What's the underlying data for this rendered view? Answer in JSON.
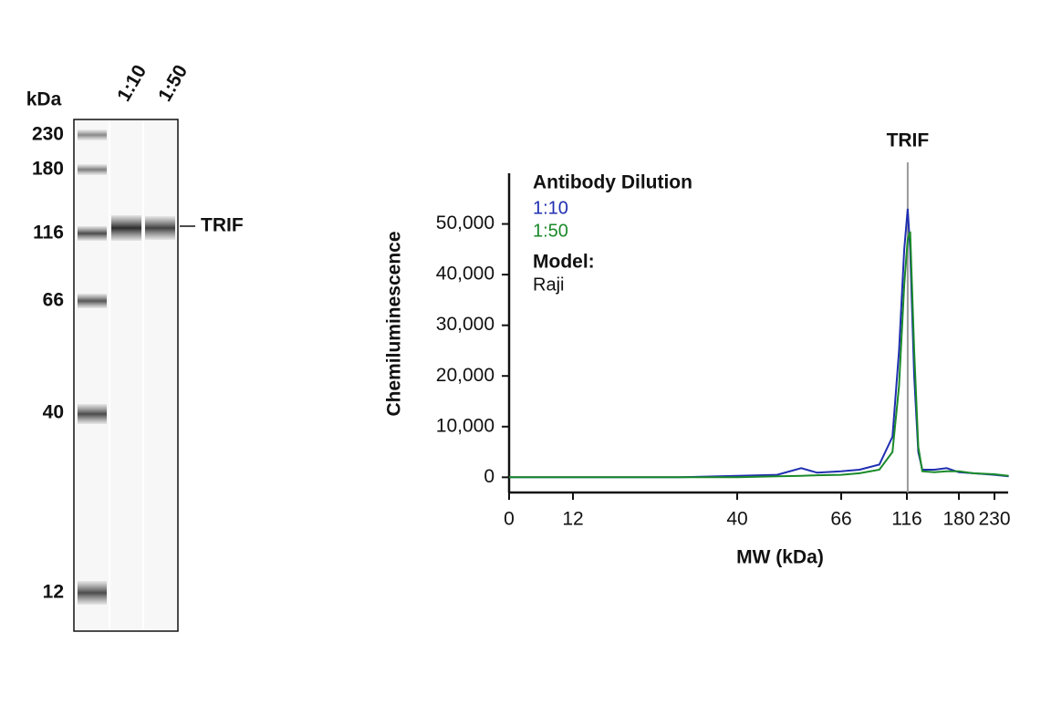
{
  "gel": {
    "unit_label": "kDa",
    "lanes": [
      "1:10",
      "1:50"
    ],
    "markers": [
      "230",
      "180",
      "116",
      "66",
      "40",
      "12"
    ],
    "band_label": "TRIF"
  },
  "chart_data": {
    "type": "line",
    "xlabel": "MW (kDa)",
    "ylabel": "Chemiluminescence",
    "legend_title": "Antibody Dilution",
    "model_title": "Model:",
    "model": "Raji",
    "annotation": {
      "label": "TRIF",
      "x": 117
    },
    "x": [
      0,
      12,
      30,
      40,
      50,
      56,
      60,
      66,
      80,
      95,
      105,
      110,
      114,
      117,
      120,
      125,
      130,
      135,
      150,
      165,
      180,
      200,
      230,
      250
    ],
    "series": [
      {
        "name": "1:10",
        "color": "#1f2fb0",
        "values": [
          0,
          0,
          0,
          300,
          500,
          1800,
          900,
          1200,
          1500,
          2500,
          8000,
          25000,
          45000,
          53000,
          45000,
          20000,
          5000,
          1500,
          1500,
          1800,
          1000,
          800,
          500,
          200
        ]
      },
      {
        "name": "1:50",
        "color": "#1a8a2a",
        "values": [
          0,
          0,
          0,
          0,
          200,
          300,
          400,
          500,
          800,
          1500,
          5000,
          18000,
          38000,
          47000,
          48500,
          25000,
          6000,
          1200,
          1000,
          1200,
          1200,
          800,
          600,
          300
        ]
      }
    ],
    "xlim": [
      0,
      250
    ],
    "xticks": [
      0,
      12,
      40,
      66,
      116,
      180,
      230
    ],
    "ylim": [
      -3000,
      60000
    ],
    "yticks": [
      0,
      {
        "value": 10000,
        "label": "10,000"
      },
      {
        "value": 20000,
        "label": "20,000"
      },
      {
        "value": 30000,
        "label": "30,000"
      },
      {
        "value": 40000,
        "label": "40,000"
      },
      {
        "value": 50000,
        "label": "50,000"
      }
    ]
  }
}
